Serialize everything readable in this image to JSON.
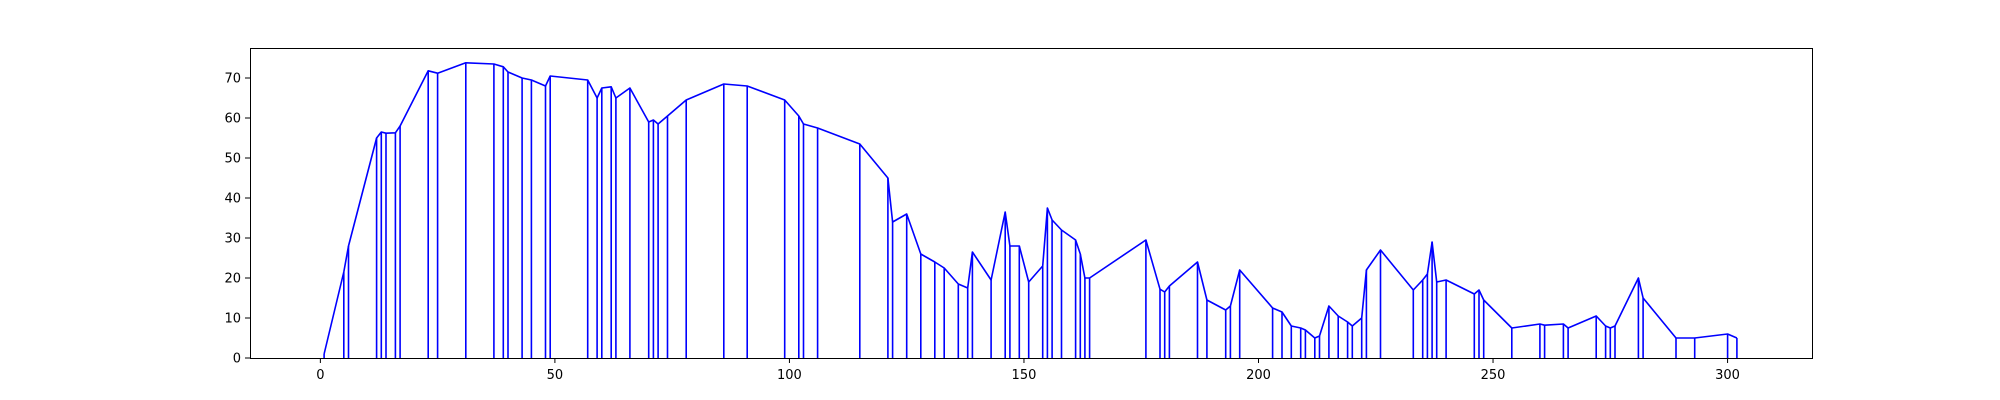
{
  "chart_data": {
    "type": "line",
    "title": "",
    "xlabel": "",
    "ylabel": "",
    "xlim": [
      -15,
      318
    ],
    "ylim": [
      0,
      77.5
    ],
    "x_ticks": [
      0,
      50,
      100,
      150,
      200,
      250,
      300
    ],
    "y_ticks": [
      0,
      10,
      20,
      30,
      40,
      50,
      60,
      70
    ],
    "grid": false,
    "legend": "none",
    "colors": {
      "line": "#0000ff",
      "axes": "#000000"
    },
    "stems_to_zero": true,
    "series": [
      {
        "x": [
          0.8,
          5,
          6,
          12,
          13,
          14,
          16,
          17,
          23,
          25,
          31,
          37,
          39,
          40,
          43,
          45,
          48,
          49,
          57,
          59,
          60,
          62,
          63,
          66,
          70,
          71,
          72,
          74,
          78,
          86,
          91,
          99,
          102,
          103,
          106,
          115,
          121,
          122,
          125,
          128,
          131,
          133,
          136,
          138,
          139,
          143,
          146,
          147,
          149,
          151,
          154,
          155,
          156,
          158,
          161,
          162,
          163,
          164,
          176,
          179,
          180,
          181,
          187,
          189,
          193,
          194,
          196,
          203,
          205,
          207,
          209,
          210,
          212,
          213,
          215,
          217,
          219,
          220,
          222,
          223,
          226,
          233,
          235,
          236,
          237,
          238,
          240,
          246,
          247,
          248,
          254,
          260,
          261,
          265,
          266,
          272,
          274,
          275,
          276,
          281,
          282,
          289,
          293,
          300,
          302
        ],
        "y": [
          1,
          21.5,
          28,
          55,
          56.5,
          56.2,
          56.3,
          58,
          71.8,
          71.2,
          73.8,
          73.5,
          72.8,
          71.5,
          70,
          69.5,
          68,
          70.5,
          69.5,
          65,
          67.5,
          67.8,
          65,
          67.5,
          59,
          59.5,
          58.5,
          60.5,
          64.5,
          68.5,
          68,
          64.5,
          60.5,
          58.5,
          57.5,
          53.5,
          45,
          34,
          36,
          26,
          24,
          22.5,
          18.5,
          17.5,
          26.5,
          19.5,
          36.5,
          28,
          28,
          19,
          23,
          37.5,
          34.5,
          32,
          29.5,
          26,
          20,
          20,
          29.5,
          17.2,
          16.5,
          18,
          24,
          14.5,
          12,
          13,
          22,
          12.5,
          11.5,
          8,
          7.5,
          7,
          5,
          5.5,
          13,
          10.5,
          9,
          8,
          10,
          22,
          27,
          17,
          19.5,
          21,
          29,
          19,
          19.5,
          16,
          17,
          14.5,
          7.5,
          8.5,
          8.2,
          8.5,
          7.5,
          10.5,
          8,
          7.5,
          8,
          20,
          15,
          5,
          5,
          6,
          5
        ]
      }
    ]
  }
}
